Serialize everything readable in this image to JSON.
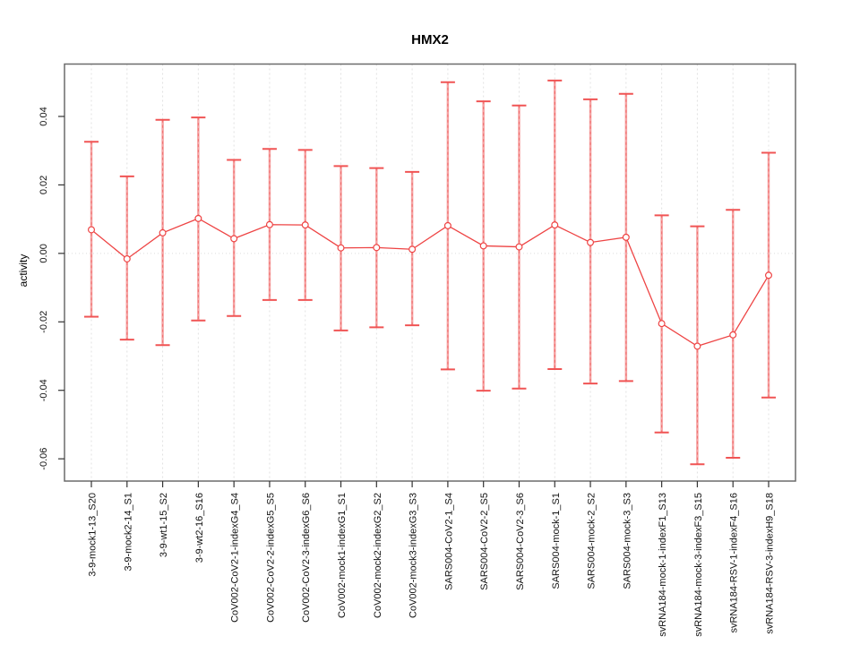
{
  "chart_data": {
    "type": "line",
    "title": "HMX2",
    "xlabel": "",
    "ylabel": "activity",
    "categories": [
      "3-9-mock1-13_S20",
      "3-9-mock2-14_S1",
      "3-9-wt1-15_S2",
      "3-9-wt2-16_S16",
      "CoV002-CoV2-1-indexG4_S4",
      "CoV002-CoV2-2-indexG5_S5",
      "CoV002-CoV2-3-indexG6_S6",
      "CoV002-mock1-indexG1_S1",
      "CoV002-mock2-indexG2_S2",
      "CoV002-mock3-indexG3_S3",
      "SARS004-CoV2-1_S4",
      "SARS004-CoV2-2_S5",
      "SARS004-CoV2-3_S6",
      "SARS004-mock-1_S1",
      "SARS004-mock-2_S2",
      "SARS004-mock-3_S3",
      "svRNA184-mock-1-indexF1_S13",
      "svRNA184-mock-3-indexF3_S15",
      "svRNA184-RSV-1-indexF4_S16",
      "svRNA184-RSV-3-indexH9_S18"
    ],
    "series": [
      {
        "name": "activity (mean)",
        "role": "center",
        "values": [
          0.0069,
          -0.0016,
          0.006,
          0.0102,
          0.0043,
          0.0084,
          0.0083,
          0.0016,
          0.0017,
          0.0012,
          0.0081,
          0.0022,
          0.0019,
          0.0083,
          0.0032,
          0.0047,
          -0.0205,
          -0.0271,
          -0.0238,
          -0.0064
        ]
      },
      {
        "name": "upper error bound",
        "role": "upper",
        "values": [
          0.0326,
          0.0225,
          0.039,
          0.0397,
          0.0273,
          0.0305,
          0.0302,
          0.0255,
          0.0249,
          0.0238,
          0.05,
          0.0444,
          0.0432,
          0.0505,
          0.045,
          0.0466,
          0.0111,
          0.0079,
          0.0127,
          0.0294
        ]
      },
      {
        "name": "lower error bound",
        "role": "lower",
        "values": [
          -0.0185,
          -0.0252,
          -0.0268,
          -0.0196,
          -0.0183,
          -0.0136,
          -0.0136,
          -0.0225,
          -0.0216,
          -0.021,
          -0.0339,
          -0.0401,
          -0.0395,
          -0.0338,
          -0.038,
          -0.0373,
          -0.0523,
          -0.0616,
          -0.0597,
          -0.0421
        ]
      }
    ],
    "yticks": [
      0.04,
      0.02,
      0,
      -0.02,
      -0.04,
      -0.06
    ],
    "ytick_labels": [
      "0.04",
      "0.02",
      "0.00",
      "-0.02",
      "-0.04",
      "-0.06"
    ],
    "ylim": [
      -0.0665,
      0.0553
    ],
    "grid": {
      "vertical": "dashed",
      "zero_line": "dotted",
      "horizontal": "zero-only"
    },
    "legend": "none",
    "marker": "open-circle",
    "colors": {
      "error_bar": "#f5a2a2",
      "error_bar_dash": "#ee4444",
      "error_cap": "#f05454",
      "line": "#ee4444",
      "marker_stroke": "#ee4444",
      "marker_fill": "#ffffff",
      "grid": "#e1e1e1",
      "zero_line": "#dcdcdc",
      "box": "#6b6b6b",
      "tick": "#333333",
      "text": "#111111"
    }
  }
}
